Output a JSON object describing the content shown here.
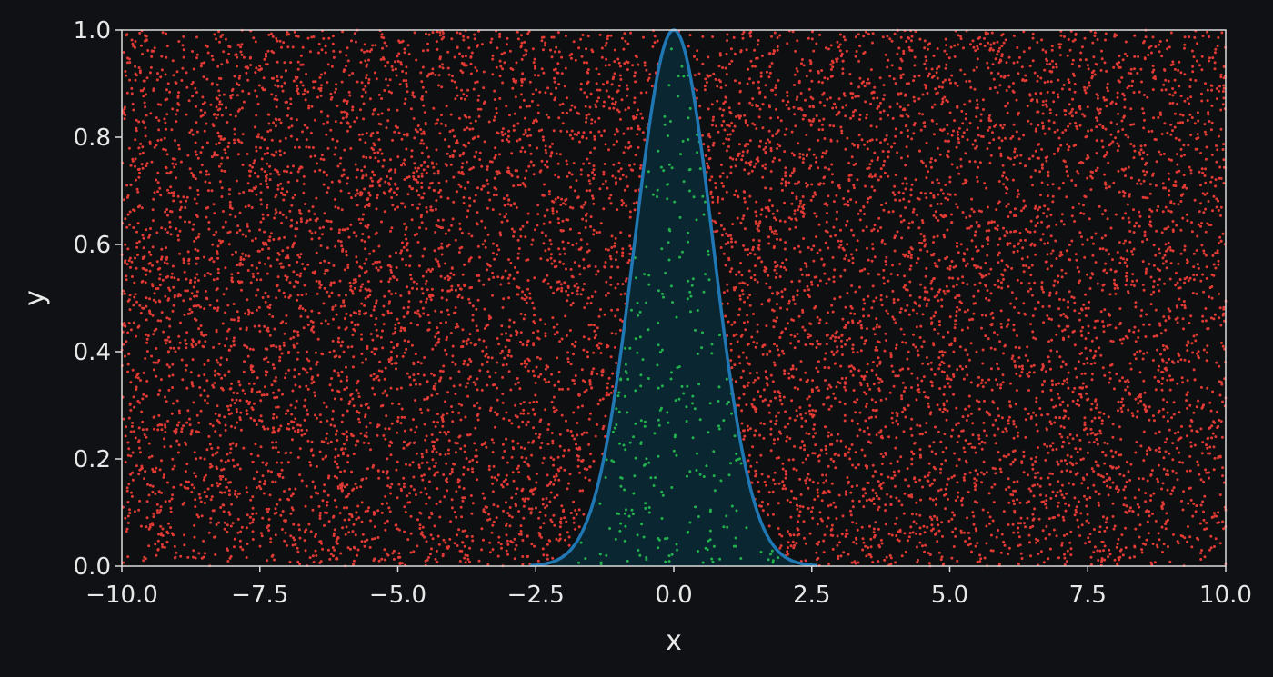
{
  "colors": {
    "background": "#0f1114",
    "plot_background": "#0e0f10",
    "axes": "#dddddd",
    "rejected_points": "#e03a34",
    "accepted_points": "#22b14c",
    "curve": "#1f77b4",
    "fill": "#0a2630"
  },
  "chart_data": {
    "type": "scatter",
    "title": "",
    "xlabel": "x",
    "ylabel": "y",
    "xlim": [
      -10,
      10
    ],
    "ylim": [
      0,
      1
    ],
    "grid": false,
    "legend": "none",
    "x_ticks": [
      "−10.0",
      "−7.5",
      "−5.0",
      "−2.5",
      "0.0",
      "2.5",
      "5.0",
      "7.5",
      "10.0"
    ],
    "y_ticks": [
      "0.0",
      "0.2",
      "0.4",
      "0.6",
      "0.8",
      "1.0"
    ],
    "series": [
      {
        "role": "points_above_curve",
        "color": "#e03a34",
        "distribution": "uniform",
        "x_range": [
          -10,
          10
        ],
        "y_range": [
          0,
          1
        ],
        "approx_count": 9700
      },
      {
        "role": "points_below_curve",
        "color": "#22b14c",
        "distribution": "uniform under curve",
        "approx_count": 300
      },
      {
        "role": "curve",
        "color": "#1f77b4",
        "function": "exp(-x^2)",
        "x": [
          -2.0,
          -1.5,
          -1.25,
          -1.0,
          -0.75,
          -0.5,
          -0.25,
          0.0,
          0.25,
          0.5,
          0.75,
          1.0,
          1.25,
          1.5,
          2.0
        ],
        "y": [
          0.018,
          0.105,
          0.21,
          0.368,
          0.57,
          0.779,
          0.939,
          1.0,
          0.939,
          0.779,
          0.57,
          0.368,
          0.21,
          0.105,
          0.018
        ]
      }
    ]
  }
}
